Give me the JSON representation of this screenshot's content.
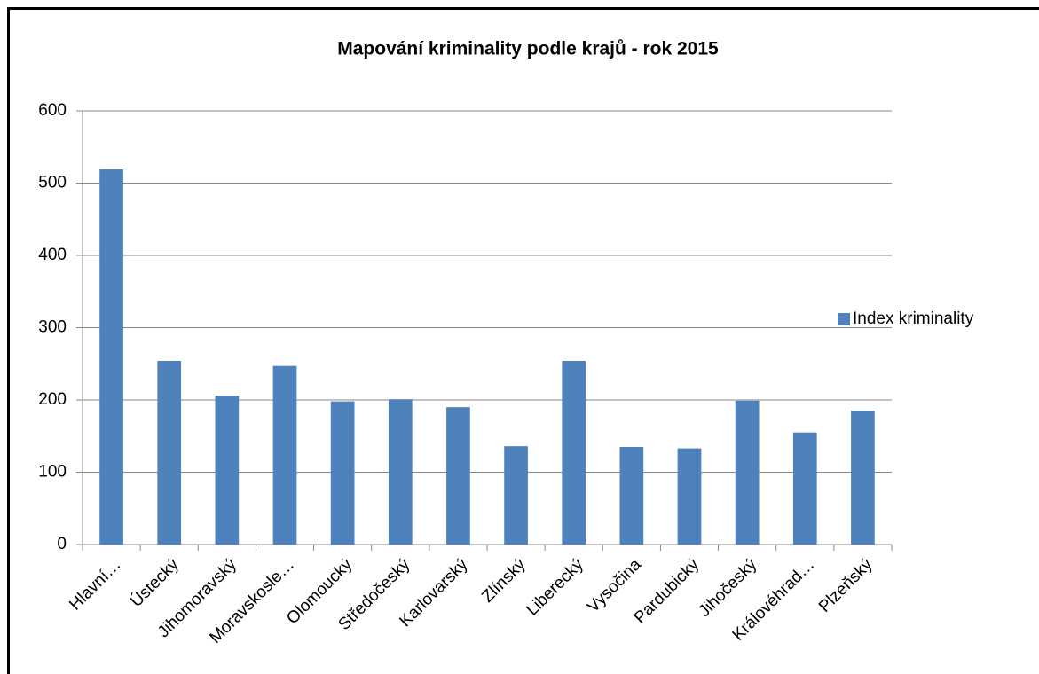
{
  "chart_data": {
    "type": "bar",
    "title": "Mapování kriminality podle krajů - rok 2015",
    "categories": [
      "Hlavní…",
      "Ústecký",
      "Jihomoravský",
      "Moravskosle…",
      "Olomoucký",
      "Středočeský",
      "Karlovarský",
      "Zlínský",
      "Liberecký",
      "Vysočina",
      "Pardubický",
      "Jihočeský",
      "Královéhrad…",
      "Plzeňský"
    ],
    "series": [
      {
        "name": "Index kriminality",
        "color": "#4f81bd",
        "values": [
          519,
          254,
          206,
          247,
          198,
          201,
          190,
          136,
          254,
          135,
          133,
          199,
          155,
          185
        ]
      }
    ],
    "ylim": [
      0,
      600
    ],
    "yticks": [
      0,
      100,
      200,
      300,
      400,
      500,
      600
    ],
    "grid": true,
    "legend": "right"
  }
}
